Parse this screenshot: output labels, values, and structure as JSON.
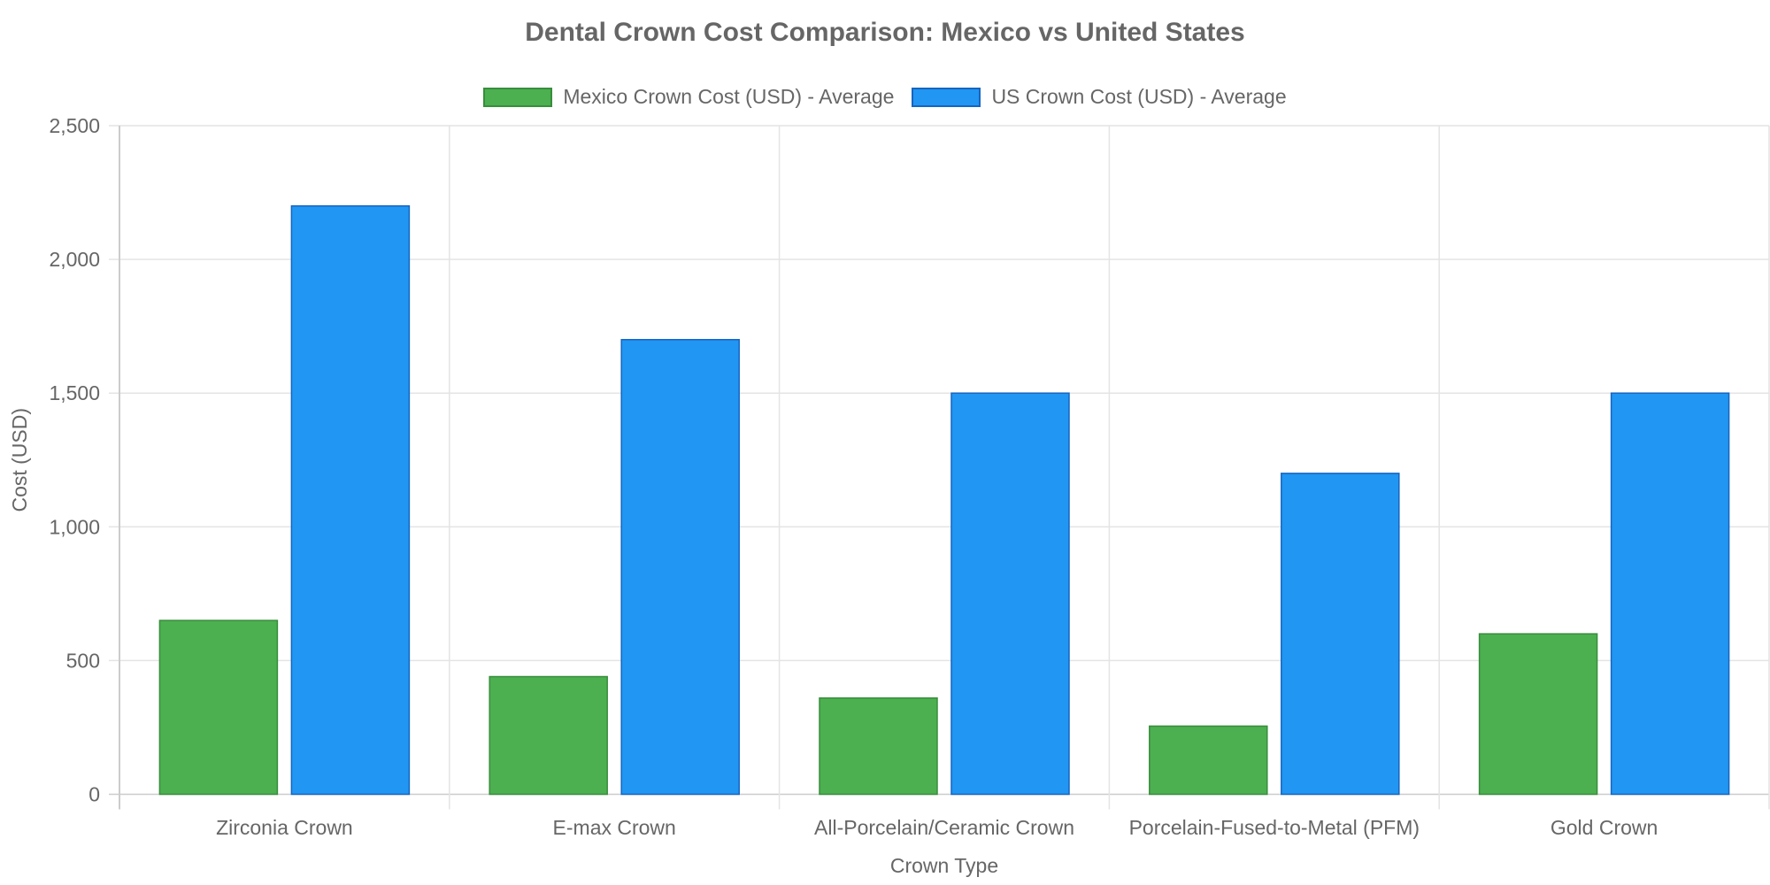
{
  "chart_data": {
    "type": "bar",
    "title": "Dental Crown Cost Comparison: Mexico vs United States",
    "xlabel": "Crown Type",
    "ylabel": "Cost (USD)",
    "ylim": [
      0,
      2500
    ],
    "yticks": [
      0,
      500,
      1000,
      1500,
      2000,
      2500
    ],
    "ytick_labels": [
      "0",
      "500",
      "1,000",
      "1,500",
      "2,000",
      "2,500"
    ],
    "grid": true,
    "legend_position": "top-center",
    "categories": [
      "Zirconia Crown",
      "E-max Crown",
      "All-Porcelain/Ceramic Crown",
      "Porcelain-Fused-to-Metal (PFM)",
      "Gold Crown"
    ],
    "series": [
      {
        "name": "Mexico Crown Cost (USD) - Average",
        "color": "#4CAF50",
        "border": "#388E3C",
        "values": [
          650,
          440,
          360,
          255,
          600
        ]
      },
      {
        "name": "US Crown Cost (USD) - Average",
        "color": "#2196F3",
        "border": "#1565C0",
        "values": [
          2200,
          1700,
          1500,
          1200,
          1500
        ]
      }
    ]
  }
}
